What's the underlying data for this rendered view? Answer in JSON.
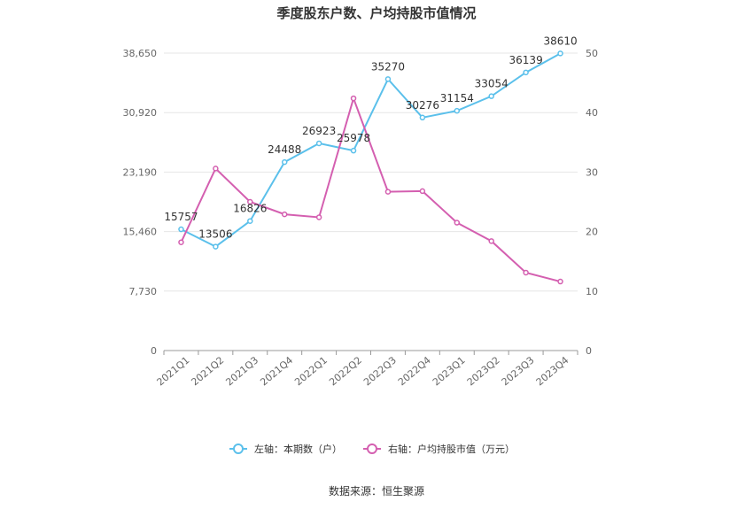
{
  "chart_data": {
    "type": "line",
    "title": "季度股东户数、户均持股市值情况",
    "categories": [
      "2021Q1",
      "2021Q2",
      "2021Q3",
      "2021Q4",
      "2022Q1",
      "2022Q2",
      "2022Q3",
      "2022Q4",
      "2023Q1",
      "2023Q2",
      "2023Q3",
      "2023Q4"
    ],
    "left_axis": {
      "ticks": [
        "0",
        "7,730",
        "15,460",
        "23,190",
        "30,920",
        "38,650"
      ],
      "range": [
        0,
        38650
      ]
    },
    "right_axis": {
      "ticks": [
        "0",
        "10",
        "20",
        "30",
        "40",
        "50"
      ],
      "range": [
        0,
        50
      ]
    },
    "series": [
      {
        "name": "左轴：本期数（户）",
        "axis": "left",
        "color": "#5bc0eb",
        "values": [
          15757,
          13506,
          16826,
          24488,
          26923,
          25978,
          35270,
          30276,
          31154,
          33054,
          36139,
          38610
        ],
        "labels": [
          "15757",
          "13506",
          "16826",
          "24488",
          "26923",
          "25978",
          "35270",
          "30276",
          "31154",
          "33054",
          "36139",
          "38610"
        ]
      },
      {
        "name": "右轴：户均持股市值（万元）",
        "axis": "right",
        "color": "#d45fb0",
        "values": [
          18.2,
          30.6,
          25.0,
          22.9,
          22.4,
          42.4,
          26.7,
          26.8,
          21.5,
          18.4,
          13.1,
          11.6
        ]
      }
    ],
    "grid": true,
    "legend_position": "bottom"
  },
  "footer": {
    "source": "数据来源：恒生聚源"
  }
}
